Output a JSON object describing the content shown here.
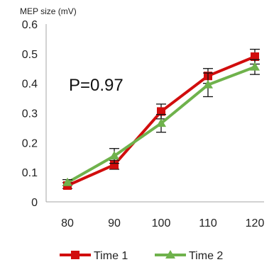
{
  "chart_data": {
    "type": "line",
    "ylabel": "MEP size (mV)",
    "x": [
      80,
      90,
      100,
      110,
      120
    ],
    "ylim": [
      0,
      0.6
    ],
    "yticks": [
      "0",
      "0.1",
      "0.2",
      "0.3",
      "0.4",
      "0.5",
      "0.6"
    ],
    "grid": false,
    "legend": "bottom",
    "annotation": "P=0.97",
    "series": [
      {
        "name": "Time 1",
        "color": "#d10d0d",
        "marker": "square",
        "values": [
          0.055,
          0.125,
          0.305,
          0.425,
          0.49
        ],
        "error": [
          0.01,
          0.015,
          0.025,
          0.025,
          0.025
        ]
      },
      {
        "name": "Time 2",
        "color": "#6fb24c",
        "marker": "triangle",
        "values": [
          0.065,
          0.155,
          0.265,
          0.395,
          0.455
        ],
        "error": [
          0.01,
          0.025,
          0.03,
          0.04,
          0.025
        ]
      }
    ]
  }
}
